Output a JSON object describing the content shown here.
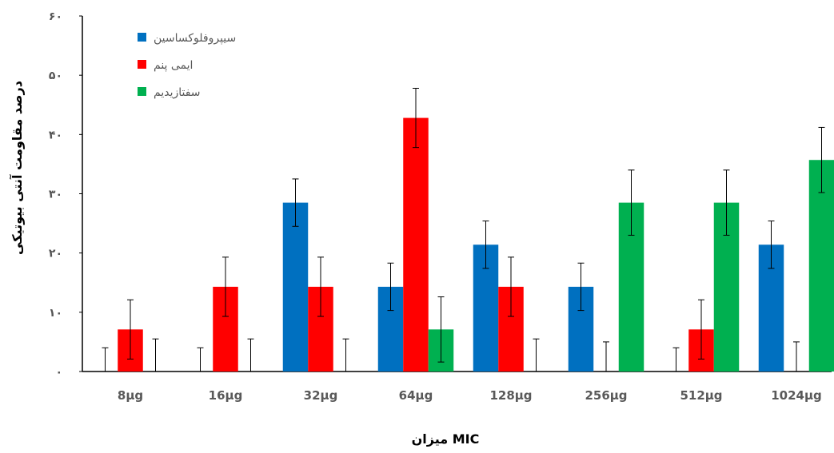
{
  "chart_data": {
    "type": "bar",
    "categories": [
      "8µg",
      "16µg",
      "32µg",
      "64µg",
      "128µg",
      "256µg",
      "512µg",
      "1024µg"
    ],
    "series": [
      {
        "name": "سیپروفلوکساسین",
        "color": "#0070C0",
        "values": [
          0,
          0,
          28.5,
          14.3,
          21.4,
          14.3,
          0,
          21.4
        ],
        "error": [
          4,
          4,
          4,
          4,
          4,
          4,
          4,
          4
        ]
      },
      {
        "name": "ایمی پنم",
        "color": "#FF0000",
        "values": [
          7.1,
          14.3,
          14.3,
          42.8,
          14.3,
          0,
          7.1,
          0
        ],
        "error": [
          5,
          5,
          5,
          5,
          5,
          5,
          5,
          5
        ]
      },
      {
        "name": "سفتازیدیم",
        "color": "#00B050",
        "values": [
          0,
          0,
          0,
          7.1,
          0,
          28.5,
          28.5,
          35.7
        ],
        "error": [
          5.5,
          5.5,
          5.5,
          5.5,
          5.5,
          5.5,
          5.5,
          5.5
        ]
      }
    ],
    "y_ticks": [
      "۰",
      "۱۰",
      "۲۰",
      "۳۰",
      "۴۰",
      "۵۰",
      "۶۰"
    ],
    "ylim": [
      0,
      60
    ],
    "xlabel": "میزان MIC",
    "ylabel": "درصد مقاومت آنتی بیوتیکی",
    "legend_position": "top-left",
    "grid": false
  }
}
